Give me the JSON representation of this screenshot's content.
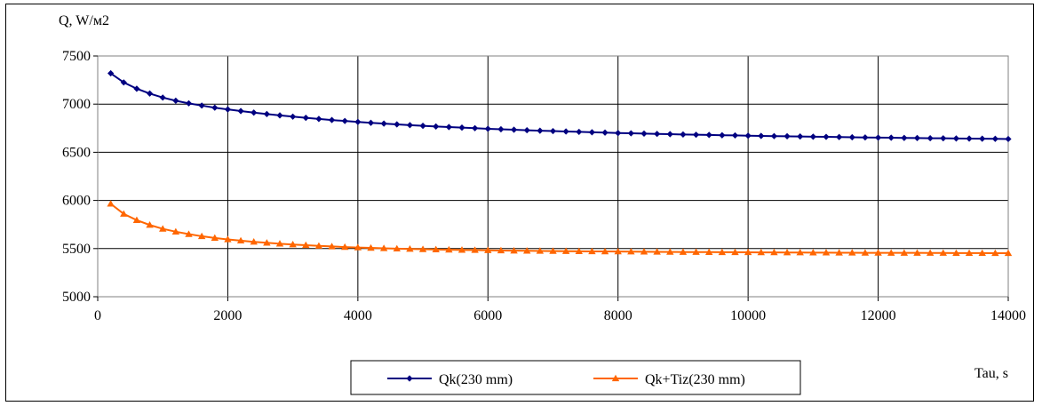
{
  "chart_data": {
    "type": "line",
    "ylabel": "Q, W/м2",
    "xlabel": "Tau, s",
    "xlim": [
      0,
      14000
    ],
    "ylim": [
      5000,
      7500
    ],
    "x_ticks": [
      0,
      2000,
      4000,
      6000,
      8000,
      10000,
      12000,
      14000
    ],
    "y_ticks": [
      5000,
      5500,
      6000,
      6500,
      7000,
      7500
    ],
    "grid": true,
    "legend_position": "bottom-center",
    "x": [
      200,
      400,
      600,
      800,
      1000,
      1200,
      1400,
      1600,
      1800,
      2000,
      2200,
      2400,
      2600,
      2800,
      3000,
      3200,
      3400,
      3600,
      3800,
      4000,
      4200,
      4400,
      4600,
      4800,
      5000,
      5200,
      5400,
      5600,
      5800,
      6000,
      6200,
      6400,
      6600,
      6800,
      7000,
      7200,
      7400,
      7600,
      7800,
      8000,
      8200,
      8400,
      8600,
      8800,
      9000,
      9200,
      9400,
      9600,
      9800,
      10000,
      10200,
      10400,
      10600,
      10800,
      11000,
      11200,
      11400,
      11600,
      11800,
      12000,
      12200,
      12400,
      12600,
      12800,
      13000,
      13200,
      13400,
      13600,
      13800,
      14000
    ],
    "series": [
      {
        "name": "Qk(230 mm)",
        "color": "#000080",
        "marker": "diamond",
        "values": [
          7320,
          7225,
          7160,
          7110,
          7068,
          7035,
          7008,
          6985,
          6963,
          6945,
          6928,
          6912,
          6897,
          6883,
          6870,
          6858,
          6846,
          6835,
          6825,
          6815,
          6806,
          6798,
          6790,
          6782,
          6775,
          6768,
          6762,
          6756,
          6750,
          6744,
          6739,
          6734,
          6729,
          6724,
          6720,
          6716,
          6712,
          6708,
          6704,
          6700,
          6697,
          6694,
          6691,
          6688,
          6685,
          6682,
          6680,
          6677,
          6675,
          6672,
          6670,
          6668,
          6666,
          6664,
          6662,
          6660,
          6658,
          6656,
          6654,
          6652,
          6651,
          6649,
          6648,
          6646,
          6645,
          6643,
          6642,
          6641,
          6640,
          6638
        ]
      },
      {
        "name": "Qk+Tiz(230 mm)",
        "color": "#FF6600",
        "marker": "triangle",
        "values": [
          5965,
          5860,
          5795,
          5745,
          5705,
          5675,
          5650,
          5628,
          5610,
          5595,
          5582,
          5570,
          5560,
          5550,
          5542,
          5535,
          5528,
          5522,
          5516,
          5511,
          5507,
          5503,
          5499,
          5496,
          5493,
          5490,
          5488,
          5486,
          5484,
          5482,
          5480,
          5478,
          5477,
          5475,
          5474,
          5473,
          5472,
          5471,
          5470,
          5469,
          5468,
          5467,
          5466,
          5465,
          5464,
          5464,
          5463,
          5462,
          5462,
          5461,
          5460,
          5460,
          5459,
          5459,
          5458,
          5458,
          5457,
          5457,
          5456,
          5456,
          5455,
          5455,
          5455,
          5454,
          5454,
          5453,
          5453,
          5453,
          5452,
          5452
        ]
      }
    ]
  }
}
